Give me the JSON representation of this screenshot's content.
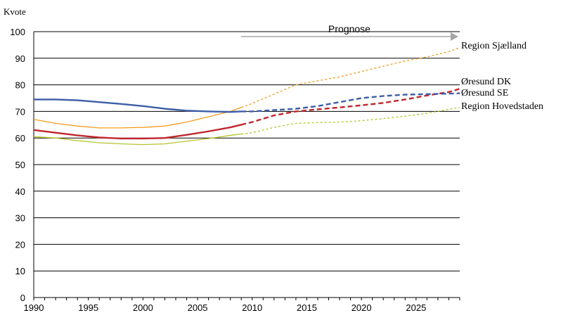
{
  "chart_data": {
    "type": "line",
    "title": "",
    "ylabel": "Kvote",
    "xlabel": "",
    "ylim": [
      0,
      100
    ],
    "xlim": [
      1990,
      2029
    ],
    "yticks": [
      0,
      10,
      20,
      30,
      40,
      50,
      60,
      70,
      80,
      90,
      100
    ],
    "xticks": [
      1990,
      1995,
      2000,
      2005,
      2010,
      2015,
      2020,
      2025
    ],
    "grid": "horizontal",
    "forecast_start": 2009,
    "annotation": "Prognose",
    "series": [
      {
        "name": "Region Sjælland",
        "color": "#f39c1f",
        "x": [
          1990,
          1992,
          1994,
          1996,
          1998,
          2000,
          2002,
          2004,
          2006,
          2008,
          2009,
          2010,
          2012,
          2014,
          2016,
          2018,
          2020,
          2022,
          2024,
          2026,
          2028,
          2029
        ],
        "y": [
          67,
          65.5,
          64.5,
          63.8,
          63.8,
          64,
          64.5,
          66,
          68,
          70,
          71.5,
          73,
          76.5,
          80,
          81.5,
          83,
          85,
          87,
          89,
          90.5,
          92.5,
          94
        ]
      },
      {
        "name": "Øresund DK",
        "color": "#c0272d",
        "x": [
          1990,
          1992,
          1994,
          1996,
          1998,
          2000,
          2002,
          2004,
          2006,
          2008,
          2009,
          2010,
          2012,
          2014,
          2016,
          2018,
          2020,
          2022,
          2024,
          2026,
          2028,
          2029
        ],
        "y": [
          63,
          62,
          61,
          60.2,
          59.8,
          59.8,
          60,
          61.2,
          62.5,
          64,
          65,
          66,
          68.5,
          70,
          70.8,
          71.5,
          72.3,
          73.2,
          74.5,
          76,
          77.3,
          78.5
        ]
      },
      {
        "name": "Øresund SE",
        "color": "#3c5ea8",
        "x": [
          1990,
          1992,
          1994,
          1996,
          1998,
          2000,
          2002,
          2004,
          2006,
          2008,
          2009,
          2010,
          2012,
          2014,
          2016,
          2018,
          2020,
          2022,
          2024,
          2026,
          2028,
          2029
        ],
        "y": [
          74.5,
          74.5,
          74.2,
          73.5,
          72.8,
          72,
          71,
          70.3,
          70,
          69.8,
          70,
          70,
          70.5,
          71,
          72,
          73.5,
          75,
          75.8,
          76.3,
          76.5,
          76.7,
          76.8
        ]
      },
      {
        "name": "Region Hovedstaden",
        "color": "#b5c42a",
        "x": [
          1990,
          1992,
          1994,
          1996,
          1998,
          2000,
          2002,
          2004,
          2006,
          2008,
          2009,
          2010,
          2012,
          2014,
          2016,
          2018,
          2020,
          2022,
          2024,
          2026,
          2028,
          2029
        ],
        "y": [
          60.5,
          60,
          59,
          58.2,
          57.8,
          57.5,
          57.8,
          58.8,
          59.8,
          61,
          61.5,
          62,
          64,
          65.5,
          65.8,
          66,
          66.5,
          67.3,
          68.2,
          69.3,
          70.8,
          71.5
        ]
      }
    ]
  }
}
